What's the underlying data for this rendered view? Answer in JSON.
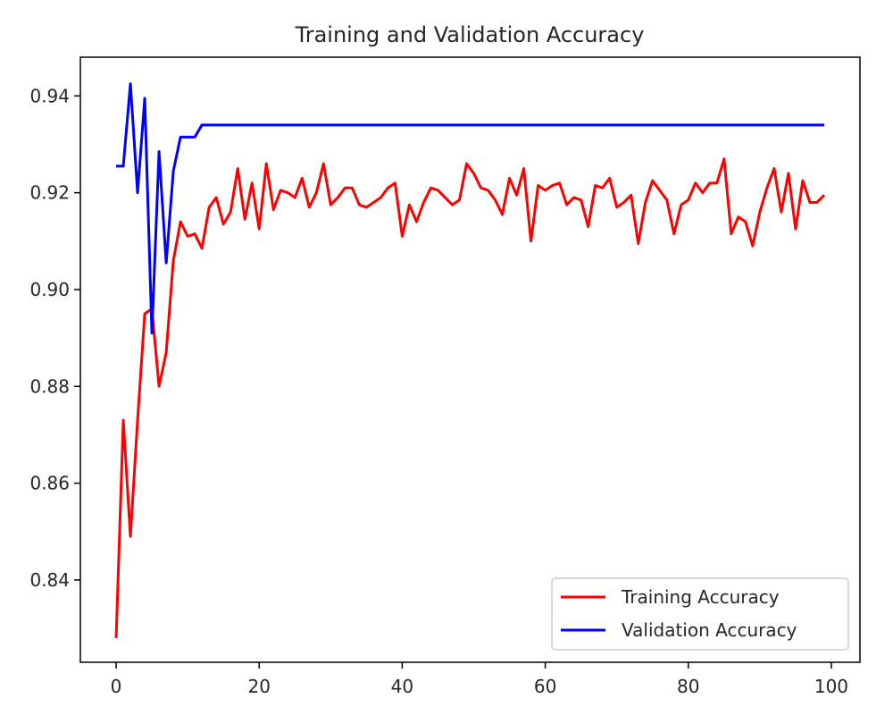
{
  "chart_data": {
    "type": "line",
    "title": "Training and Validation Accuracy",
    "xlabel": "",
    "ylabel": "",
    "xlim": [
      -5,
      104
    ],
    "ylim": [
      0.823,
      0.948
    ],
    "x_ticks": [
      0,
      20,
      40,
      60,
      80,
      100
    ],
    "y_ticks": [
      0.84,
      0.86,
      0.88,
      0.9,
      0.92,
      0.94
    ],
    "x_tick_labels": [
      "0",
      "20",
      "40",
      "60",
      "80",
      "100"
    ],
    "y_tick_labels": [
      "0.84",
      "0.86",
      "0.88",
      "0.90",
      "0.92",
      "0.94"
    ],
    "legend_position": "lower-right",
    "grid": false,
    "series": [
      {
        "name": "Training Accuracy",
        "color": "#ff0000",
        "x": [
          0,
          1,
          2,
          3,
          4,
          5,
          6,
          7,
          8,
          9,
          10,
          11,
          12,
          13,
          14,
          15,
          16,
          17,
          18,
          19,
          20,
          21,
          22,
          23,
          24,
          25,
          26,
          27,
          28,
          29,
          30,
          31,
          32,
          33,
          34,
          35,
          36,
          37,
          38,
          39,
          40,
          41,
          42,
          43,
          44,
          45,
          46,
          47,
          48,
          49,
          50,
          51,
          52,
          53,
          54,
          55,
          56,
          57,
          58,
          59,
          60,
          61,
          62,
          63,
          64,
          65,
          66,
          67,
          68,
          69,
          70,
          71,
          72,
          73,
          74,
          75,
          76,
          77,
          78,
          79,
          80,
          81,
          82,
          83,
          84,
          85,
          86,
          87,
          88,
          89,
          90,
          91,
          92,
          93,
          94,
          95,
          96,
          97,
          98,
          99
        ],
        "values": [
          0.828,
          0.873,
          0.849,
          0.873,
          0.895,
          0.896,
          0.88,
          0.887,
          0.906,
          0.914,
          0.911,
          0.9115,
          0.9085,
          0.917,
          0.919,
          0.9135,
          0.916,
          0.925,
          0.9145,
          0.922,
          0.9125,
          0.926,
          0.9165,
          0.9205,
          0.92,
          0.919,
          0.923,
          0.917,
          0.92,
          0.926,
          0.9175,
          0.919,
          0.921,
          0.921,
          0.9175,
          0.917,
          0.918,
          0.919,
          0.921,
          0.922,
          0.911,
          0.9175,
          0.914,
          0.918,
          0.921,
          0.9205,
          0.919,
          0.9175,
          0.9185,
          0.926,
          0.924,
          0.921,
          0.9205,
          0.9185,
          0.9155,
          0.923,
          0.9195,
          0.925,
          0.91,
          0.9215,
          0.9205,
          0.9215,
          0.922,
          0.9175,
          0.919,
          0.9185,
          0.913,
          0.9215,
          0.921,
          0.923,
          0.917,
          0.918,
          0.9195,
          0.9095,
          0.918,
          0.9225,
          0.9205,
          0.9185,
          0.9115,
          0.9175,
          0.9185,
          0.922,
          0.92,
          0.922,
          0.922,
          0.927,
          0.9115,
          0.915,
          0.914,
          0.909,
          0.916,
          0.921,
          0.925,
          0.916,
          0.924,
          0.9125,
          0.9225,
          0.918,
          0.918,
          0.9195
        ]
      },
      {
        "name": "Validation Accuracy",
        "color": "#0000ff",
        "x": [
          0,
          1,
          2,
          3,
          4,
          5,
          6,
          7,
          8,
          9,
          10,
          11,
          12,
          13,
          14,
          15,
          16,
          17,
          18,
          19,
          20,
          21,
          22,
          23,
          24,
          25,
          26,
          27,
          28,
          29,
          30,
          31,
          32,
          33,
          34,
          35,
          36,
          37,
          38,
          39,
          40,
          41,
          42,
          43,
          44,
          45,
          46,
          47,
          48,
          49,
          50,
          51,
          52,
          53,
          54,
          55,
          56,
          57,
          58,
          59,
          60,
          61,
          62,
          63,
          64,
          65,
          66,
          67,
          68,
          69,
          70,
          71,
          72,
          73,
          74,
          75,
          76,
          77,
          78,
          79,
          80,
          81,
          82,
          83,
          84,
          85,
          86,
          87,
          88,
          89,
          90,
          91,
          92,
          93,
          94,
          95,
          96,
          97,
          98,
          99
        ],
        "values": [
          0.9255,
          0.9255,
          0.9425,
          0.92,
          0.9395,
          0.891,
          0.9285,
          0.9055,
          0.9245,
          0.9315,
          0.9315,
          0.9315,
          0.934,
          0.934,
          0.934,
          0.934,
          0.934,
          0.934,
          0.934,
          0.934,
          0.934,
          0.934,
          0.934,
          0.934,
          0.934,
          0.934,
          0.934,
          0.934,
          0.934,
          0.934,
          0.934,
          0.934,
          0.934,
          0.934,
          0.934,
          0.934,
          0.934,
          0.934,
          0.934,
          0.934,
          0.934,
          0.934,
          0.934,
          0.934,
          0.934,
          0.934,
          0.934,
          0.934,
          0.934,
          0.934,
          0.934,
          0.934,
          0.934,
          0.934,
          0.934,
          0.934,
          0.934,
          0.934,
          0.934,
          0.934,
          0.934,
          0.934,
          0.934,
          0.934,
          0.934,
          0.934,
          0.934,
          0.934,
          0.934,
          0.934,
          0.934,
          0.934,
          0.934,
          0.934,
          0.934,
          0.934,
          0.934,
          0.934,
          0.934,
          0.934,
          0.934,
          0.934,
          0.934,
          0.934,
          0.934,
          0.934,
          0.934,
          0.934,
          0.934,
          0.934,
          0.934,
          0.934,
          0.934,
          0.934,
          0.934,
          0.934,
          0.934,
          0.934,
          0.934,
          0.934
        ]
      }
    ]
  }
}
